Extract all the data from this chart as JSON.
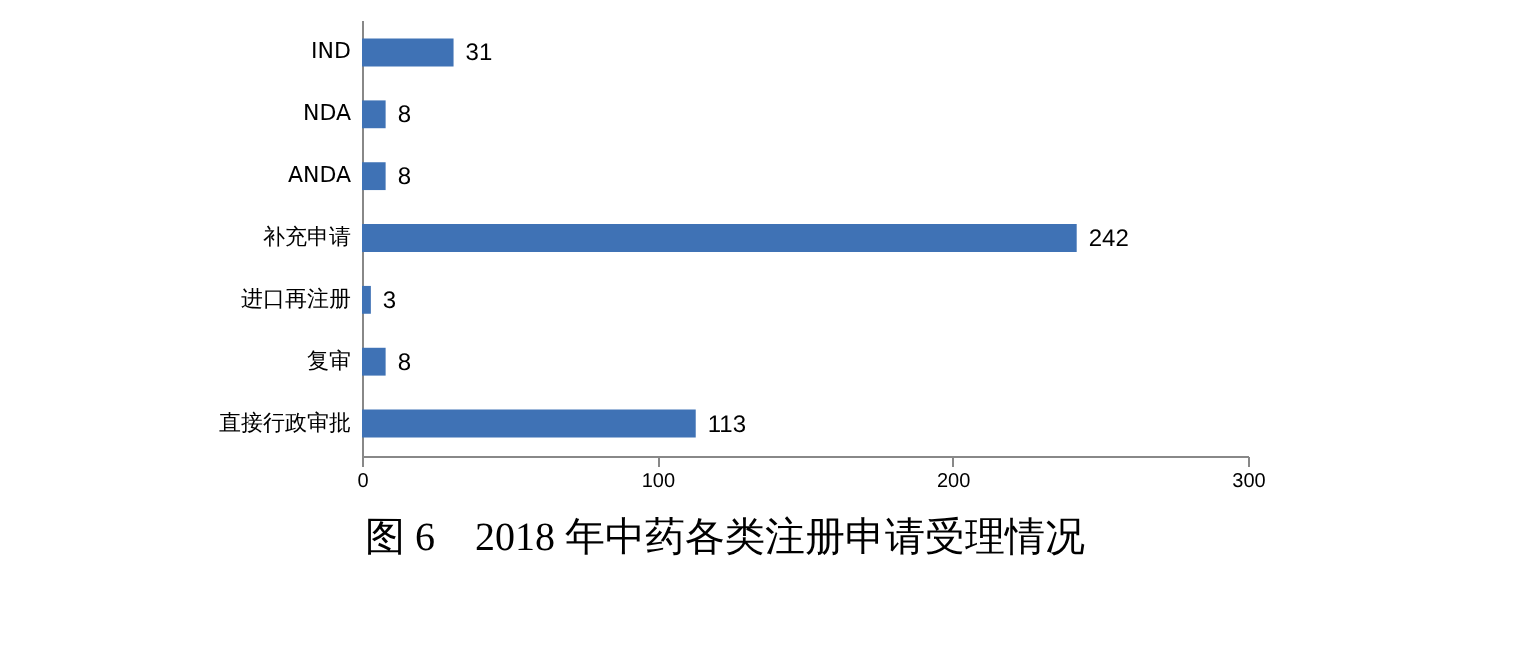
{
  "chart_data": {
    "type": "bar",
    "orientation": "horizontal",
    "title": "图 6　2018 年中药各类注册申请受理情况",
    "categories": [
      "IND",
      "NDA",
      "ANDA",
      "补充申请",
      "进口再注册",
      "复审",
      "直接行政审批"
    ],
    "values": [
      31,
      8,
      8,
      242,
      3,
      8,
      113
    ],
    "color": "#3f72b5",
    "xlim": [
      0,
      300
    ],
    "xticks": [
      0,
      100,
      200,
      300
    ],
    "data_labels": true,
    "grid": false
  }
}
